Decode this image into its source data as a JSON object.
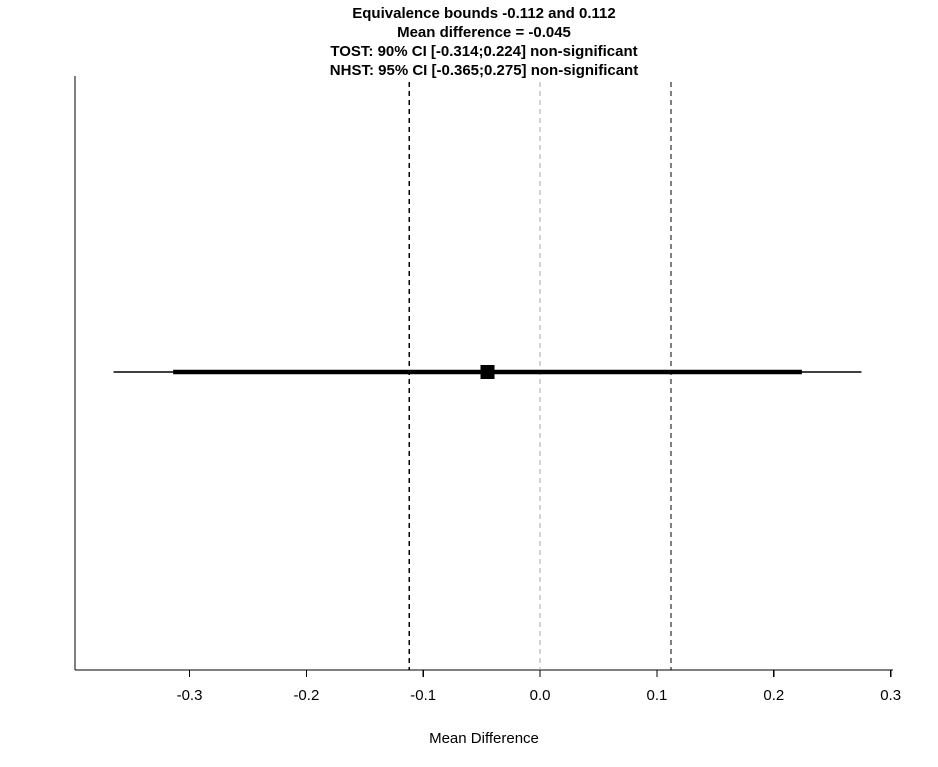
{
  "chart_data": {
    "type": "line",
    "subtype": "equivalence-test-interval-plot",
    "title_lines": [
      "Equivalence bounds -0.112 and 0.112",
      "Mean difference = -0.045",
      "TOST: 90% CI [-0.314;0.224] non-significant",
      "NHST: 95% CI [-0.365;0.275] non-significant"
    ],
    "xlabel": "Mean Difference",
    "ylabel": "",
    "xlim": [
      -0.398,
      0.302
    ],
    "x_ticks": [
      -0.3,
      -0.2,
      -0.1,
      0.0,
      0.1,
      0.2,
      0.3
    ],
    "x_tick_labels": [
      "-0.3",
      "-0.2",
      "-0.1",
      "0.0",
      "0.1",
      "0.2",
      "0.3"
    ],
    "mean_difference": -0.045,
    "equivalence_bounds": [
      -0.112,
      0.112
    ],
    "zero_line": 0.0,
    "ci_90": [
      -0.314,
      0.224
    ],
    "ci_95": [
      -0.365,
      0.275
    ],
    "tost_result": "non-significant",
    "nhst_result": "non-significant",
    "grid": false,
    "legend": false,
    "colors": {
      "axis": "#000000",
      "bounds_line": "#000000",
      "zero_line": "#aaaaaa",
      "ci_line": "#000000",
      "point": "#000000",
      "background": "#ffffff"
    }
  }
}
